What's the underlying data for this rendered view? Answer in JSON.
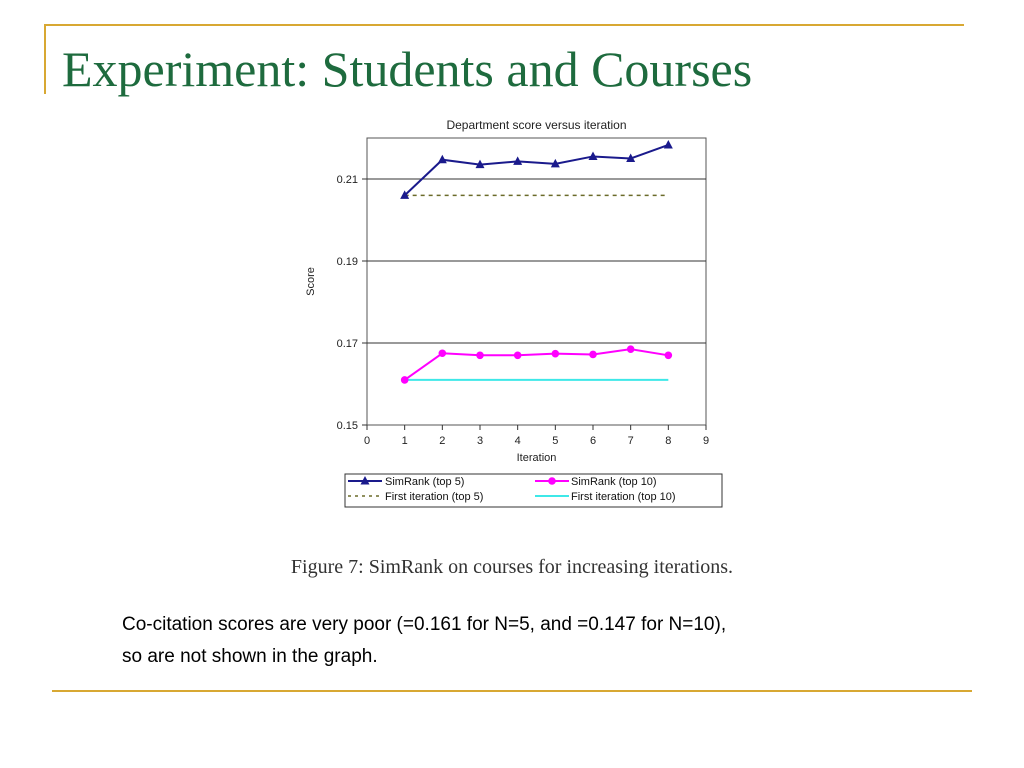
{
  "slide": {
    "title": "Experiment: Students and Courses",
    "caption": "Figure 7: SimRank on courses for increasing iterations.",
    "notes": [
      "Co-citation scores are very poor (=0.161 for N=5, and =0.147 for N=10),",
      "so are not shown in the graph."
    ]
  },
  "colors": {
    "accent": "#d8a833",
    "title": "#1e6b3e"
  },
  "chart_data": {
    "type": "line",
    "title": "Department score versus iteration",
    "xlabel": "Iteration",
    "ylabel": "Score",
    "xlim": [
      0,
      9
    ],
    "ylim": [
      0.15,
      0.22
    ],
    "xticks": [
      0,
      1,
      2,
      3,
      4,
      5,
      6,
      7,
      8,
      9
    ],
    "yticks": [
      0.15,
      0.17,
      0.19,
      0.21
    ],
    "ytick_labels": [
      "0.15",
      "0.17",
      "0.19",
      "0.21"
    ],
    "grid": "horizontal",
    "legend_position": "bottom",
    "series": [
      {
        "name": "SimRank (top 5)",
        "x": [
          1,
          2,
          3,
          4,
          5,
          6,
          7,
          8
        ],
        "values": [
          0.206,
          0.2147,
          0.2135,
          0.2143,
          0.2137,
          0.2155,
          0.215,
          0.2183
        ],
        "color": "#1a1a8c",
        "marker": "triangle",
        "style": "solid"
      },
      {
        "name": "SimRank (top 10)",
        "x": [
          1,
          2,
          3,
          4,
          5,
          6,
          7,
          8
        ],
        "values": [
          0.161,
          0.1675,
          0.167,
          0.167,
          0.1674,
          0.1672,
          0.1685,
          0.167
        ],
        "color": "#ff00ff",
        "marker": "circle",
        "style": "solid"
      },
      {
        "name": "First iteration (top 5)",
        "x": [
          1,
          8
        ],
        "values": [
          0.206,
          0.206
        ],
        "color": "#6b6b2a",
        "marker": "none",
        "style": "dashed"
      },
      {
        "name": "First iteration (top 10)",
        "x": [
          1,
          8
        ],
        "values": [
          0.161,
          0.161
        ],
        "color": "#3ee8e8",
        "marker": "none",
        "style": "solid"
      }
    ]
  }
}
